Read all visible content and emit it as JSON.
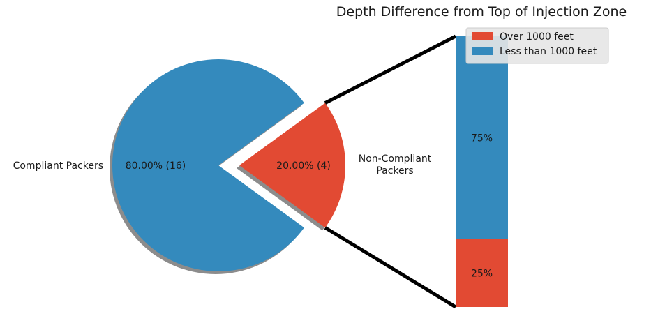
{
  "chart_data": [
    {
      "type": "pie",
      "slices": [
        {
          "label": "Compliant Packers",
          "value": 80.0,
          "count": 16,
          "pct_text": "80.00%  (16)",
          "color": "#348ABD",
          "exploded": false
        },
        {
          "label_lines": [
            "Non-Compliant",
            "Packers"
          ],
          "value": 20.0,
          "count": 4,
          "pct_text": "20.00%  (4)",
          "color": "#E24A33",
          "exploded": true
        }
      ],
      "shadow": true
    },
    {
      "type": "bar",
      "stacked": true,
      "title": "Depth Difference from Top of Injection Zone",
      "series": [
        {
          "name": "Over 1000 feet",
          "value": 0.25,
          "label": "25%",
          "color": "#E24A33"
        },
        {
          "name": "Less than 1000 feet",
          "value": 0.75,
          "label": "75%",
          "color": "#348ABD"
        }
      ],
      "legend_position": "top-right"
    }
  ]
}
